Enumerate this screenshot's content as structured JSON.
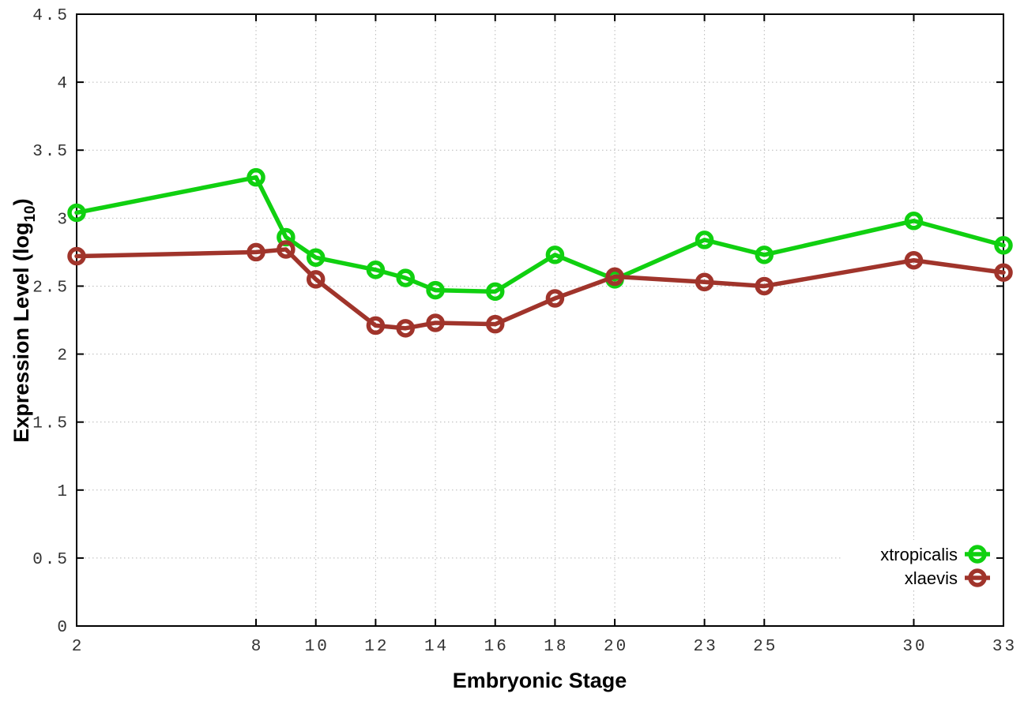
{
  "chart_data": {
    "type": "line",
    "title": "",
    "xlabel": "Embryonic Stage",
    "ylabel": {
      "prefix": "Expression Level (log",
      "sub": "10",
      "suffix": ")"
    },
    "x": [
      2,
      8,
      9,
      10,
      12,
      13,
      14,
      16,
      18,
      20,
      23,
      25,
      30,
      33
    ],
    "series": [
      {
        "name": "xtropicalis",
        "color": "#10d010",
        "values": [
          3.04,
          3.3,
          2.86,
          2.71,
          2.62,
          2.56,
          2.47,
          2.46,
          2.73,
          2.55,
          2.84,
          2.73,
          2.98,
          2.8
        ]
      },
      {
        "name": "xlaevis",
        "color": "#a0342b",
        "values": [
          2.72,
          2.75,
          2.77,
          2.55,
          2.21,
          2.19,
          2.23,
          2.22,
          2.41,
          2.57,
          2.53,
          2.5,
          2.69,
          2.6
        ]
      }
    ],
    "xlim": [
      2,
      33
    ],
    "ylim": [
      0,
      4.5
    ],
    "xtick_values": [
      2,
      8,
      10,
      12,
      14,
      16,
      18,
      20,
      23,
      25,
      30,
      33
    ],
    "xtick_labels": [
      "2",
      "8",
      "10",
      "12",
      "14",
      "16",
      "18",
      "20",
      "23",
      "25",
      "30",
      "33"
    ],
    "ytick_values": [
      0,
      0.5,
      1,
      1.5,
      2,
      2.5,
      3,
      3.5,
      4,
      4.5
    ],
    "ytick_labels": [
      "0",
      "0.5",
      "1",
      "1.5",
      "2",
      "2.5",
      "3",
      "3.5",
      "4",
      "4.5"
    ],
    "grid": true,
    "legend": {
      "position": "bottom-right",
      "entries": [
        "xtropicalis",
        "xlaevis"
      ],
      "opaque": true
    },
    "colors": {
      "grid": "#b8b8b8",
      "axis": "#000000",
      "tick_label": "#333333",
      "background": "#ffffff"
    }
  }
}
